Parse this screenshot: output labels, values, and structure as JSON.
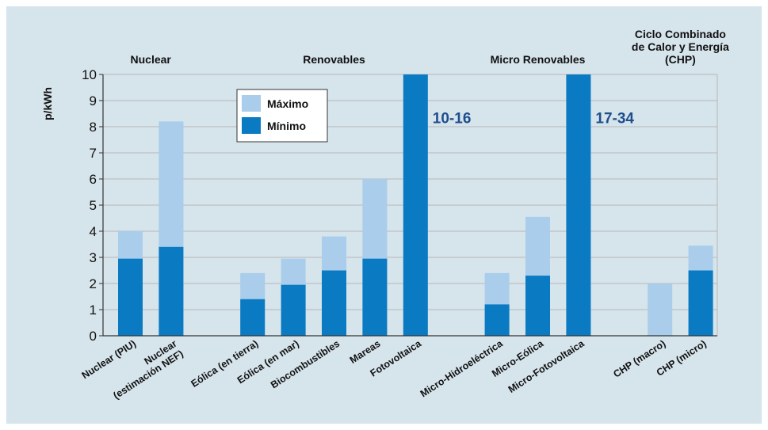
{
  "chart_data": {
    "type": "bar",
    "ylabel": "p/kWh",
    "ylim": [
      0,
      10
    ],
    "yticks": [
      "0",
      "1",
      "2",
      "3",
      "4",
      "5",
      "6",
      "7",
      "8",
      "9",
      "10"
    ],
    "grid": true,
    "legend_position": "top-left inside plot",
    "categories": [
      "Nuclear (PIU)",
      "Nuclear (estimación NEF)",
      "Eólica (en tierra)",
      "Eólica (en mar)",
      "Biocombustibles",
      "Mareas",
      "Fotovoltaica",
      "Micro-Hidroeléctrica",
      "Micro-Eólica",
      "Micro-Fotovoltaica",
      "CHP (macro)",
      "CHP (micro)"
    ],
    "category_lines": [
      [
        "Nuclear (PIU)"
      ],
      [
        "Nuclear",
        "(estimación NEF)"
      ],
      [
        "Eólica (en tierra)"
      ],
      [
        "Eólica (en mar)"
      ],
      [
        "Biocombustibles"
      ],
      [
        "Mareas"
      ],
      [
        "Fotovoltaica"
      ],
      [
        "Micro-Hidroeléctrica"
      ],
      [
        "Micro-Eólica"
      ],
      [
        "Micro-Fotovoltaica"
      ],
      [
        "CHP (macro)"
      ],
      [
        "CHP (micro)"
      ]
    ],
    "series": [
      {
        "name": "Mínimo",
        "color": "#0a7bc2",
        "values": [
          2.95,
          3.4,
          1.4,
          1.95,
          2.5,
          2.95,
          10,
          1.2,
          2.3,
          10,
          0,
          2.5
        ]
      },
      {
        "name": "Máximo",
        "color": "#a9cdea",
        "values": [
          4.0,
          8.2,
          2.4,
          2.95,
          3.8,
          6.0,
          10,
          2.4,
          4.55,
          10,
          2.0,
          3.45
        ]
      }
    ],
    "groups": [
      {
        "lines": [
          "Nuclear"
        ],
        "first": 0,
        "last": 1
      },
      {
        "lines": [
          "Renovables"
        ],
        "first": 2,
        "last": 6
      },
      {
        "lines": [
          "Micro Renovables"
        ],
        "first": 7,
        "last": 9
      },
      {
        "lines": [
          "Ciclo Combinado",
          "de Calor y Energía",
          "(CHP)"
        ],
        "first": 10,
        "last": 11
      }
    ],
    "annotations": [
      {
        "text": "10-16",
        "category": "Fotovoltaica",
        "y": 8.35
      },
      {
        "text": "17-34",
        "category": "Micro-Fotovoltaica",
        "y": 8.35
      }
    ]
  }
}
